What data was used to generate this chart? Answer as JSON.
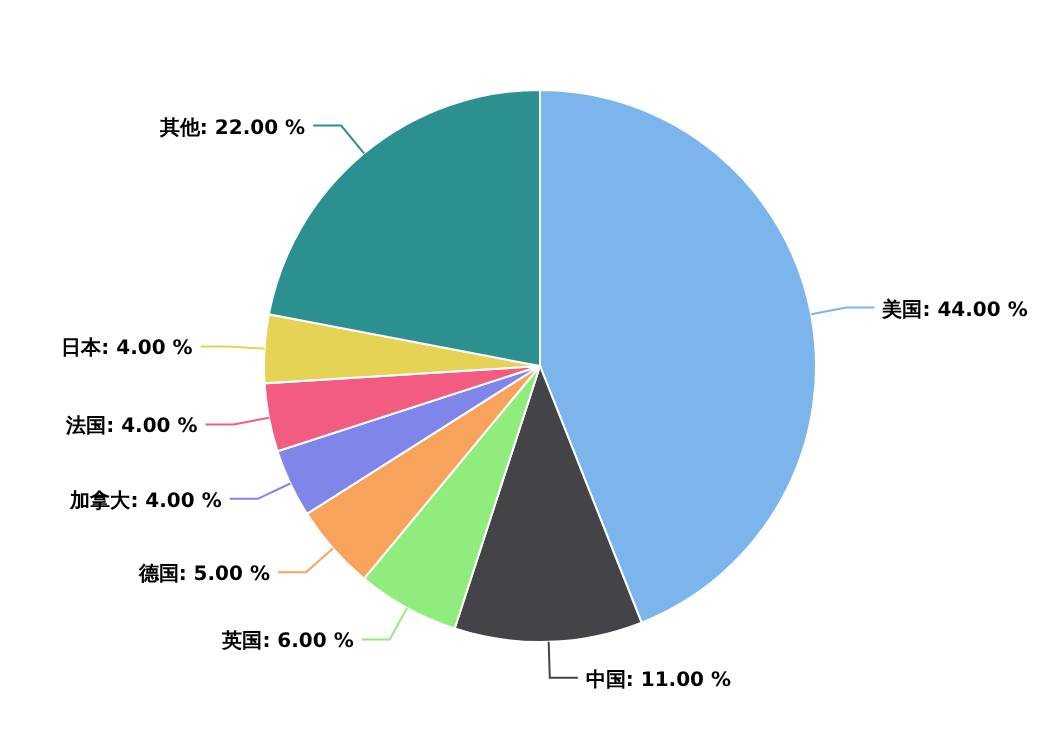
{
  "chart_data": {
    "type": "pie",
    "categories": [
      "美国",
      "中国",
      "英国",
      "德国",
      "加拿大",
      "法国",
      "日本",
      "其他"
    ],
    "values": [
      44,
      11,
      6,
      5,
      4,
      4,
      4,
      22
    ],
    "colors": [
      "#7cb5ec",
      "#434348",
      "#90ed7d",
      "#f7a35c",
      "#8085e9",
      "#f15c80",
      "#e4d354",
      "#2b908f"
    ],
    "value_labels": [
      "44.00 %",
      "11.00 %",
      "6.00 %",
      "5.00 %",
      "4.00 %",
      "4.00 %",
      "4.00 %",
      "22.00 %"
    ],
    "legend": false
  }
}
